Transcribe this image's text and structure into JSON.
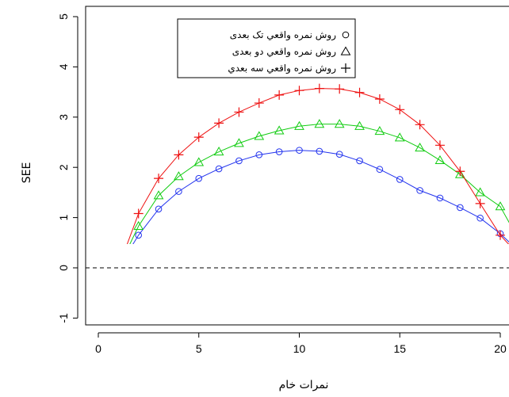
{
  "chart_data": {
    "type": "line",
    "title": "",
    "xlabel": "نمرات خام",
    "ylabel": "SEE",
    "xlim": [
      -1,
      20.6
    ],
    "ylim": [
      -1.35,
      5.35
    ],
    "x_ticks": [
      0,
      5,
      10,
      15,
      20
    ],
    "y_ticks": [
      -1,
      0,
      1,
      2,
      3,
      4,
      5
    ],
    "x_tick_labels": [
      "0",
      "5",
      "10",
      "15",
      "20"
    ],
    "y_tick_labels": [
      "-1",
      "0",
      "1",
      "2",
      "3",
      "4",
      "5"
    ],
    "reference_line": {
      "y": 0,
      "style": "dashed",
      "color": "#000000"
    },
    "grid": false,
    "legend": {
      "placement": "top-center"
    },
    "x": [
      1,
      2,
      3,
      4,
      5,
      6,
      7,
      8,
      9,
      10,
      11,
      12,
      13,
      14,
      15,
      16,
      17,
      18,
      19,
      20,
      21
    ],
    "series": [
      {
        "name": "روش نمره واقعي تک بعدی",
        "marker": "circle",
        "color": "#2233ee",
        "values": [
          0,
          0.65,
          1.17,
          1.52,
          1.78,
          1.97,
          2.13,
          2.25,
          2.31,
          2.34,
          2.32,
          2.26,
          2.13,
          1.96,
          1.76,
          1.54,
          1.39,
          1.2,
          0.99,
          0.68,
          0.3
        ]
      },
      {
        "name": "روش نمره واقعي دو بعدی",
        "marker": "triangle",
        "color": "#11cc11",
        "values": [
          0,
          0.83,
          1.44,
          1.82,
          2.1,
          2.31,
          2.48,
          2.62,
          2.73,
          2.82,
          2.86,
          2.86,
          2.82,
          2.72,
          2.59,
          2.39,
          2.14,
          1.86,
          1.5,
          1.22,
          0.5
        ]
      },
      {
        "name": "روش نمره واقعي سه بعدي",
        "marker": "plus",
        "color": "#ee1111",
        "values": [
          0,
          1.08,
          1.78,
          2.25,
          2.6,
          2.88,
          3.1,
          3.28,
          3.44,
          3.53,
          3.57,
          3.56,
          3.49,
          3.36,
          3.15,
          2.85,
          2.44,
          1.92,
          1.28,
          0.65,
          0.22
        ]
      }
    ]
  }
}
